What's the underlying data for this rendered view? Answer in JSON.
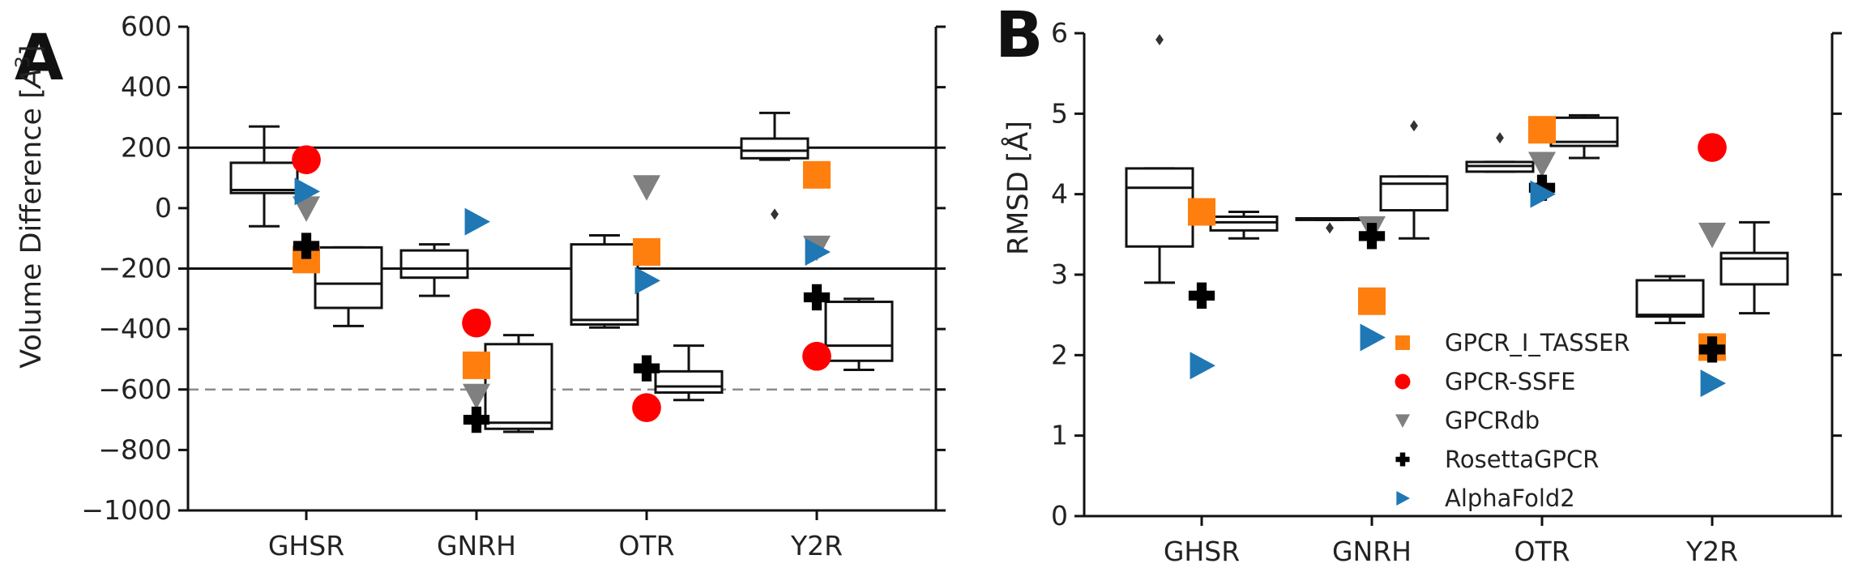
{
  "chart_data": [
    {
      "type": "box",
      "panel_label": "A",
      "ylabel": "Volume Difference [A^3]",
      "ylabel_main": "Volume Difference [",
      "ylabel_symbol": "A",
      "ylabel_exponent": "3",
      "ylabel_close": "]",
      "ylim": [
        -1000,
        600
      ],
      "yticks": [
        600,
        400,
        200,
        0,
        -200,
        -400,
        -600,
        -800,
        -1000
      ],
      "ytick_labels": [
        "600",
        "400",
        "200",
        "0",
        "−200",
        "−400",
        "−600",
        "−800",
        "−1000"
      ],
      "categories": [
        "GHSR",
        "GNRH",
        "OTR",
        "Y2R"
      ],
      "reference_lines": [
        {
          "y": 200,
          "style": "solid"
        },
        {
          "y": -200,
          "style": "solid"
        },
        {
          "y": -600,
          "style": "dashed"
        }
      ],
      "boxes": [
        {
          "category": "GHSR",
          "group": "left",
          "whisker_low": -60,
          "q1": 50,
          "median": 60,
          "q3": 150,
          "whisker_high": 270
        },
        {
          "category": "GHSR",
          "group": "right",
          "whisker_low": -390,
          "q1": -330,
          "median": -250,
          "q3": -130,
          "whisker_high": -130
        },
        {
          "category": "GNRH",
          "group": "left",
          "whisker_low": -290,
          "q1": -230,
          "median": -200,
          "q3": -140,
          "whisker_high": -120
        },
        {
          "category": "GNRH",
          "group": "right",
          "whisker_low": -740,
          "q1": -730,
          "median": -710,
          "q3": -450,
          "whisker_high": -420
        },
        {
          "category": "OTR",
          "group": "left",
          "whisker_low": -395,
          "q1": -385,
          "median": -370,
          "q3": -120,
          "whisker_high": -90
        },
        {
          "category": "OTR",
          "group": "right",
          "whisker_low": -635,
          "q1": -610,
          "median": -590,
          "q3": -540,
          "whisker_high": -455
        },
        {
          "category": "Y2R",
          "group": "left",
          "whisker_low": 160,
          "q1": 165,
          "median": 190,
          "q3": 230,
          "whisker_high": 315
        },
        {
          "category": "Y2R",
          "group": "right",
          "whisker_low": -535,
          "q1": -505,
          "median": -455,
          "q3": -310,
          "whisker_high": -300
        }
      ],
      "outliers": [
        {
          "category": "Y2R",
          "group": "left",
          "y": -20
        }
      ],
      "series": [
        {
          "name": "GPCR_I_TASSER",
          "marker": "square",
          "color": "#ff7f0e",
          "values": [
            -170,
            -520,
            -145,
            110
          ]
        },
        {
          "name": "GPCR-SSFE",
          "marker": "circle",
          "color": "#ff0000",
          "values": [
            160,
            -380,
            -660,
            -490
          ]
        },
        {
          "name": "GPCRdb",
          "marker": "triangle-down",
          "color": "#808080",
          "values": [
            0,
            -620,
            70,
            -130
          ]
        },
        {
          "name": "RosettaGPCR",
          "marker": "plus",
          "color": "#000000",
          "values": [
            -125,
            -700,
            -530,
            -295
          ]
        },
        {
          "name": "AlphaFold2",
          "marker": "triangle-right",
          "color": "#1f77b4",
          "values": [
            55,
            -45,
            -240,
            -145
          ]
        }
      ]
    },
    {
      "type": "box",
      "panel_label": "B",
      "ylabel": "RMSD [Å]",
      "ylim": [
        0,
        6
      ],
      "yticks": [
        6,
        5,
        4,
        3,
        2,
        1,
        0
      ],
      "ytick_labels": [
        "6",
        "5",
        "4",
        "3",
        "2",
        "1",
        "0"
      ],
      "categories": [
        "GHSR",
        "GNRH",
        "OTR",
        "Y2R"
      ],
      "boxes": [
        {
          "category": "GHSR",
          "group": "left",
          "whisker_low": 2.9,
          "q1": 3.35,
          "median": 4.08,
          "q3": 4.32,
          "whisker_high": 4.32
        },
        {
          "category": "GHSR",
          "group": "right",
          "whisker_low": 3.45,
          "q1": 3.55,
          "median": 3.65,
          "q3": 3.72,
          "whisker_high": 3.78
        },
        {
          "category": "GNRH",
          "group": "left",
          "whisker_low": 3.68,
          "q1": 3.68,
          "median": 3.7,
          "q3": 3.7,
          "whisker_high": 3.7
        },
        {
          "category": "GNRH",
          "group": "right",
          "whisker_low": 3.45,
          "q1": 3.8,
          "median": 4.13,
          "q3": 4.22,
          "whisker_high": 4.22
        },
        {
          "category": "OTR",
          "group": "left",
          "whisker_low": 4.28,
          "q1": 4.28,
          "median": 4.35,
          "q3": 4.4,
          "whisker_high": 4.4
        },
        {
          "category": "OTR",
          "group": "right",
          "whisker_low": 4.45,
          "q1": 4.6,
          "median": 4.65,
          "q3": 4.95,
          "whisker_high": 4.98
        },
        {
          "category": "Y2R",
          "group": "left",
          "whisker_low": 2.4,
          "q1": 2.48,
          "median": 2.5,
          "q3": 2.93,
          "whisker_high": 2.98
        },
        {
          "category": "Y2R",
          "group": "right",
          "whisker_low": 2.52,
          "q1": 2.88,
          "median": 3.2,
          "q3": 3.27,
          "whisker_high": 3.65
        }
      ],
      "outliers": [
        {
          "category": "GHSR",
          "group": "left",
          "y": 5.92
        },
        {
          "category": "GNRH",
          "group": "left",
          "y": 3.58
        },
        {
          "category": "GNRH",
          "group": "right",
          "y": 4.85
        },
        {
          "category": "OTR",
          "group": "left",
          "y": 4.7
        }
      ],
      "series": [
        {
          "name": "GPCR_I_TASSER",
          "marker": "square",
          "color": "#ff7f0e",
          "values": [
            3.78,
            2.67,
            4.8,
            2.1
          ]
        },
        {
          "name": "GPCR-SSFE",
          "marker": "circle",
          "color": "#ff0000",
          "values": [
            null,
            null,
            null,
            4.58
          ]
        },
        {
          "name": "GPCRdb",
          "marker": "triangle-down",
          "color": "#808080",
          "values": [
            null,
            3.58,
            4.38,
            3.5
          ]
        },
        {
          "name": "RosettaGPCR",
          "marker": "plus",
          "color": "#000000",
          "values": [
            2.74,
            3.48,
            4.08,
            2.07
          ]
        },
        {
          "name": "AlphaFold2",
          "marker": "triangle-right",
          "color": "#1f77b4",
          "values": [
            1.87,
            2.22,
            4.0,
            1.65
          ]
        }
      ],
      "legend": {
        "position": "lower-right",
        "entries": [
          "GPCR_I_TASSER",
          "GPCR-SSFE",
          "GPCRdb",
          "RosettaGPCR",
          "AlphaFold2"
        ]
      }
    }
  ]
}
